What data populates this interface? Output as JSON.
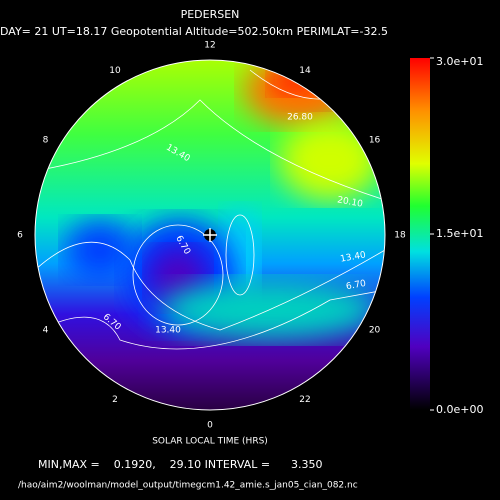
{
  "chart_data": {
    "type": "polar-contour",
    "title": "PEDERSEN",
    "subtitle": "DAY= 21 UT=18.17 Geopotential Altitude=502.50km PERIMLAT=-32.5",
    "xlabel": "SOLAR LOCAL TIME (HRS)",
    "local_time_ticks": [
      12,
      14,
      16,
      18,
      20,
      22,
      0,
      2,
      4,
      6,
      8,
      10
    ],
    "colorbar_lim": [
      0,
      30
    ],
    "colorbar_ticks": [
      {
        "value": 30,
        "label": "3.0e+01"
      },
      {
        "value": 15,
        "label": "1.5e+01"
      },
      {
        "value": 0,
        "label": "0.0e+00"
      }
    ],
    "contour_labels": [
      {
        "value": 26.8,
        "label": "26.80"
      },
      {
        "value": 20.1,
        "label": "20.10"
      },
      {
        "value": 13.4,
        "label": "13.40"
      },
      {
        "value": 13.4,
        "label": "13.40"
      },
      {
        "value": 6.7,
        "label": "6.70"
      },
      {
        "value": 6.7,
        "label": "6.70"
      },
      {
        "value": 6.7,
        "label": "6.70"
      },
      {
        "value": 13.4,
        "label": "13.40"
      }
    ],
    "stats": "MIN,MAX =    0.1920,    29.10 INTERVAL =      3.350",
    "file": "/hao/aim2/woolman/model_output/timegcm1.42_amie.s_jan05_cian_082.nc"
  }
}
